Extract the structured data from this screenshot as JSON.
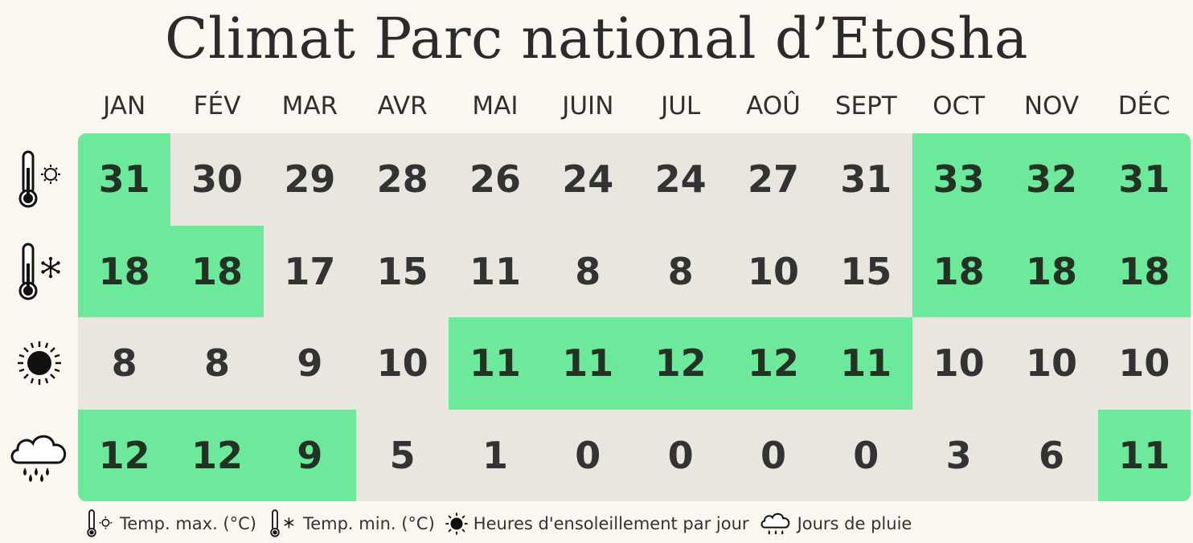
{
  "title": "Climat Parc national d’Etosha",
  "chart_data": {
    "type": "table",
    "title": "Climat Parc national d’Etosha",
    "categories": [
      "JAN",
      "FÉV",
      "MAR",
      "AVR",
      "MAI",
      "JUIN",
      "JUL",
      "AOÛ",
      "SEPT",
      "OCT",
      "NOV",
      "DÉC"
    ],
    "series": [
      {
        "name": "Temp. max. (°C)",
        "icon": "thermometer-sun-icon",
        "values": [
          31,
          30,
          29,
          28,
          26,
          24,
          24,
          27,
          31,
          33,
          32,
          31
        ],
        "highlighted": [
          true,
          false,
          false,
          false,
          false,
          false,
          false,
          false,
          false,
          true,
          true,
          true
        ]
      },
      {
        "name": "Temp. min. (°C)",
        "icon": "thermometer-snow-icon",
        "values": [
          18,
          18,
          17,
          15,
          11,
          8,
          8,
          10,
          15,
          18,
          18,
          18
        ],
        "highlighted": [
          true,
          true,
          false,
          false,
          false,
          false,
          false,
          false,
          false,
          true,
          true,
          true
        ]
      },
      {
        "name": "Heures d'ensoleillement par jour",
        "icon": "sun-icon",
        "values": [
          8,
          8,
          9,
          10,
          11,
          11,
          12,
          12,
          11,
          10,
          10,
          10
        ],
        "highlighted": [
          false,
          false,
          false,
          false,
          true,
          true,
          true,
          true,
          true,
          false,
          false,
          false
        ]
      },
      {
        "name": "Jours de pluie",
        "icon": "rain-cloud-icon",
        "values": [
          12,
          12,
          9,
          5,
          1,
          0,
          0,
          0,
          0,
          3,
          6,
          11
        ],
        "highlighted": [
          true,
          true,
          true,
          false,
          false,
          false,
          false,
          false,
          false,
          false,
          false,
          true
        ]
      }
    ]
  },
  "colors": {
    "highlight": "#6ce99a",
    "cell": "#e8e6df",
    "background": "#f9f7ef"
  }
}
